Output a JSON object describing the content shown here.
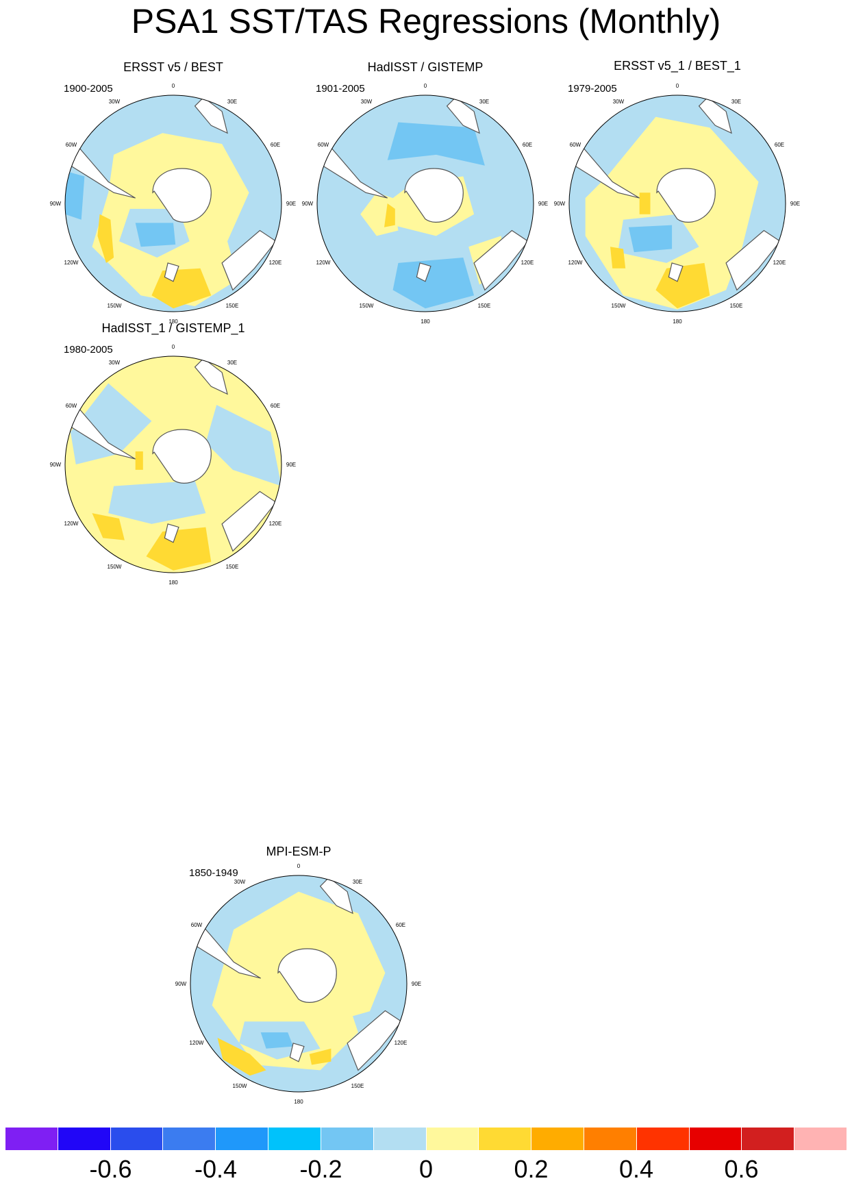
{
  "title": "PSA1 SST/TAS Regressions (Monthly)",
  "lon_labels": [
    "0",
    "30E",
    "60E",
    "90E",
    "120E",
    "150E",
    "180",
    "150W",
    "120W",
    "90W",
    "60W",
    "30W"
  ],
  "colors": {
    "neg_strong": "#73c6f3",
    "neg_weak": "#b3def2",
    "pos_weak": "#fff89c",
    "pos_mid": "#ffda33",
    "land_outline": "#555555"
  },
  "panels": [
    {
      "title": "ERSST v5 / BEST",
      "period": "1900-2005",
      "base": "neg_weak",
      "variant": 0
    },
    {
      "title": "HadISST / GISTEMP",
      "period": "1901-2005",
      "base": "neg_weak",
      "variant": 1
    },
    {
      "title": "ERSST v5_1 / BEST_1",
      "period": "1979-2005",
      "base": "neg_weak",
      "variant": 2
    },
    {
      "title": "HadISST_1 / GISTEMP_1",
      "period": "1980-2005",
      "base": "pos_weak",
      "variant": 3
    },
    {
      "title": "MPI-ESM-P",
      "period": "1850-1949",
      "base": "neg_weak",
      "variant": 4
    }
  ],
  "colorbar": {
    "colors": [
      "#7f1ff3",
      "#2106f7",
      "#2a4ded",
      "#3b7cf0",
      "#1f98fa",
      "#00c2fb",
      "#73c6f3",
      "#b3def2",
      "#fff89c",
      "#ffda33",
      "#ffac00",
      "#ff7f00",
      "#ff3300",
      "#e70000",
      "#d21f1f",
      "#ffb3b3"
    ],
    "labels": [
      "-0.6",
      "-0.4",
      "-0.2",
      "0",
      "0.2",
      "0.4",
      "0.6"
    ]
  }
}
